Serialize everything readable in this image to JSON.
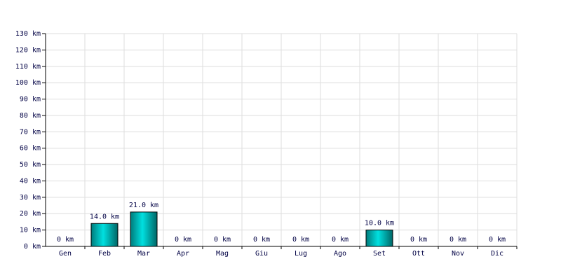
{
  "chart_data": {
    "type": "bar",
    "categories": [
      "Gen",
      "Feb",
      "Mar",
      "Apr",
      "Mag",
      "Giu",
      "Lug",
      "Ago",
      "Set",
      "Ott",
      "Nov",
      "Dic"
    ],
    "values": [
      0,
      14,
      21,
      0,
      0,
      0,
      0,
      0,
      10,
      0,
      0,
      0
    ],
    "value_labels": [
      "0 km",
      "14.0 km",
      "21.0 km",
      "0 km",
      "0 km",
      "0 km",
      "0 km",
      "0 km",
      "10.0 km",
      "0 km",
      "0 km",
      "0 km"
    ],
    "color": "#00e0e0",
    "ylim": [
      0,
      130
    ],
    "yticks": [
      {
        "value": 0,
        "label": "0 km"
      },
      {
        "value": 10,
        "label": "10 km"
      },
      {
        "value": 20,
        "label": "20 km"
      },
      {
        "value": 30,
        "label": "30 km"
      },
      {
        "value": 40,
        "label": "40 km"
      },
      {
        "value": 50,
        "label": "50 km"
      },
      {
        "value": 60,
        "label": "60 km"
      },
      {
        "value": 70,
        "label": "70 km"
      },
      {
        "value": 80,
        "label": "80 km"
      },
      {
        "value": 90,
        "label": "90 km"
      },
      {
        "value": 100,
        "label": "100 km"
      },
      {
        "value": 110,
        "label": "110 km"
      },
      {
        "value": 120,
        "label": "120 km"
      },
      {
        "value": 130,
        "label": "130 km"
      }
    ],
    "grid": true
  }
}
